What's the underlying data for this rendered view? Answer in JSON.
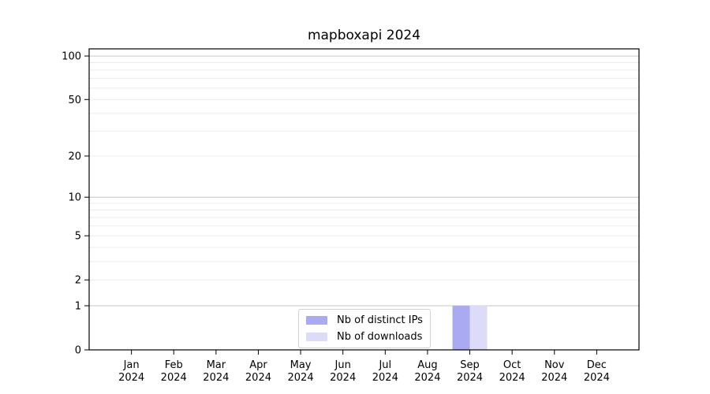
{
  "colors": {
    "background": "#ffffff",
    "axis": "#000000",
    "major_grid": "#c6c6c6",
    "minor_grid": "#ececec",
    "legend_border": "#d2d2d2",
    "bar_distinct_ips": "#aaaaf2",
    "bar_downloads": "#dcdcf8"
  },
  "chart_data": {
    "type": "bar",
    "title": "mapboxapi 2024",
    "xlabel": "",
    "ylabel": "",
    "categories": [
      "Jan 2024",
      "Feb 2024",
      "Mar 2024",
      "Apr 2024",
      "May 2024",
      "Jun 2024",
      "Jul 2024",
      "Aug 2024",
      "Sep 2024",
      "Oct 2024",
      "Nov 2024",
      "Dec 2024"
    ],
    "series": [
      {
        "name": "Nb of distinct IPs",
        "color": "#aaaaf2",
        "values": [
          0,
          0,
          0,
          0,
          0,
          0,
          0,
          0,
          1,
          0,
          0,
          0
        ]
      },
      {
        "name": "Nb of downloads",
        "color": "#dcdcf8",
        "values": [
          0,
          0,
          0,
          0,
          0,
          0,
          0,
          0,
          1,
          0,
          0,
          0
        ]
      }
    ],
    "y_scale": "log1p",
    "y_ticks": [
      0,
      1,
      2,
      5,
      10,
      20,
      50,
      100
    ],
    "y_axis_max": 112,
    "major_gridline_values": [
      1,
      10,
      100
    ],
    "minor_gridline_values": [
      2,
      3,
      4,
      5,
      6,
      7,
      8,
      9,
      20,
      30,
      40,
      50,
      60,
      70,
      80,
      90
    ],
    "grid": true,
    "legend_position": "lower center"
  }
}
